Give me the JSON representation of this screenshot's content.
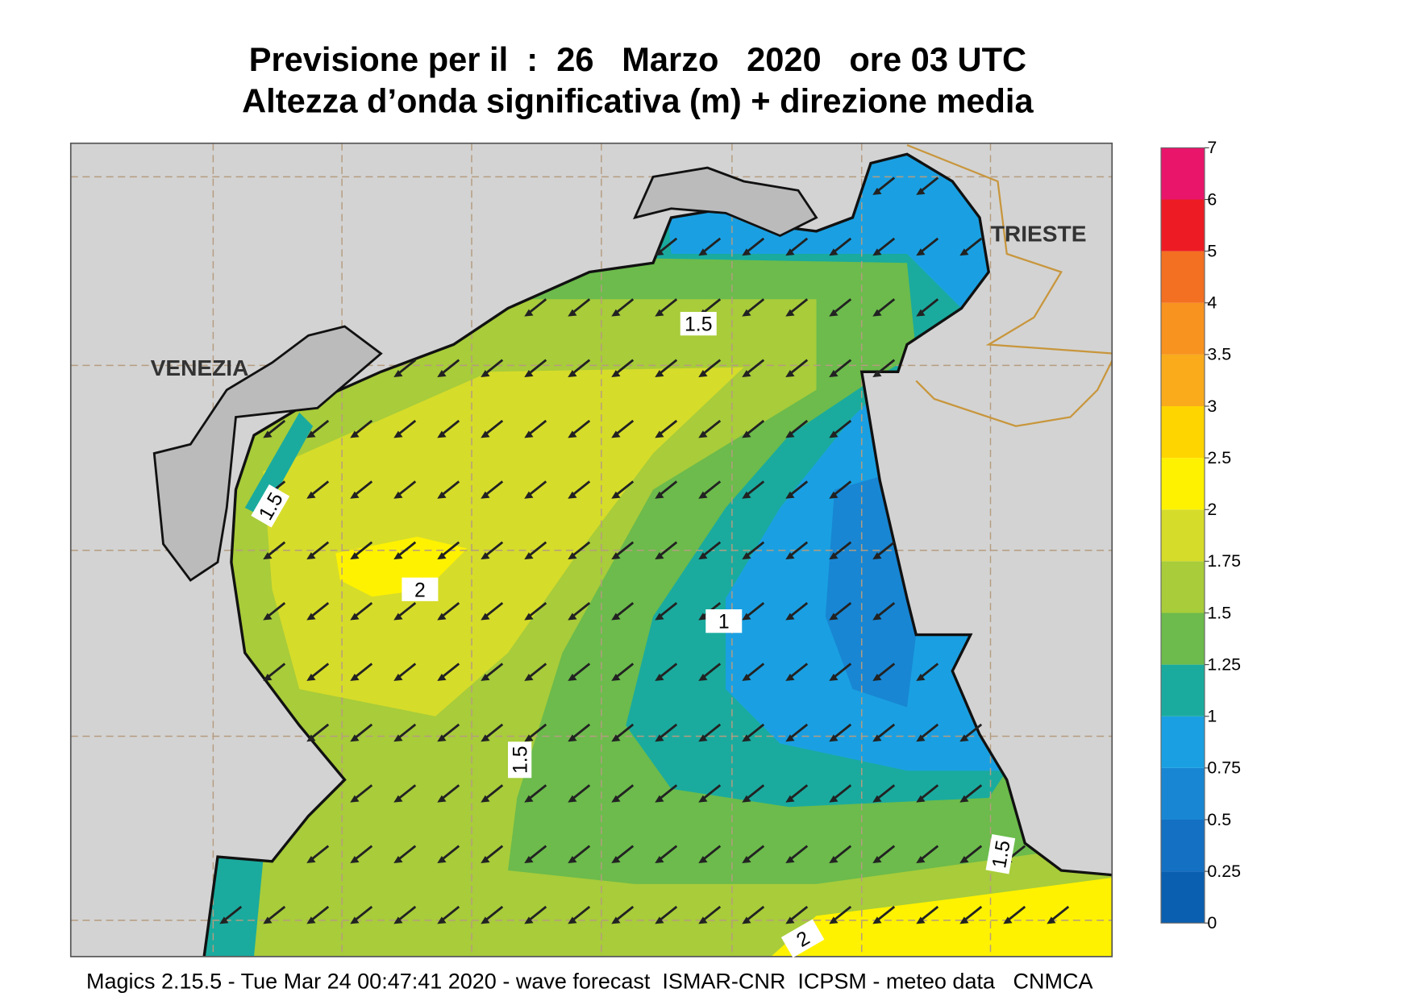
{
  "header": {
    "title": "Previsione per il  :  26   Marzo   2020   ore 03 UTC",
    "subtitle": "Altezza d’onda significativa (m) + direzione media"
  },
  "places": [
    "VENEZIA",
    "TRIESTE"
  ],
  "contour_labels": [
    "1.5",
    "1.5",
    "2",
    "1",
    "1.5",
    "1.5",
    "2"
  ],
  "colorbar": {
    "ticks": [
      0,
      0.25,
      0.5,
      0.75,
      1,
      1.25,
      1.5,
      1.75,
      2,
      2.5,
      3,
      3.5,
      4,
      5,
      6,
      7
    ],
    "colors": [
      "#0a5fb0",
      "#1470c2",
      "#1886d3",
      "#1aa0e2",
      "#1aab9e",
      "#6cbb4c",
      "#a8cc3a",
      "#d6dc2a",
      "#fff200",
      "#ffd500",
      "#f9ab1c",
      "#f7931e",
      "#f36f21",
      "#ed1c24",
      "#e8156b"
    ]
  },
  "footer": "Magics 2.15.5 - Tue Mar 24 00:47:41 2020 - wave forecast  ISMAR-CNR  ICPSM - meteo data   CNMCA"
}
